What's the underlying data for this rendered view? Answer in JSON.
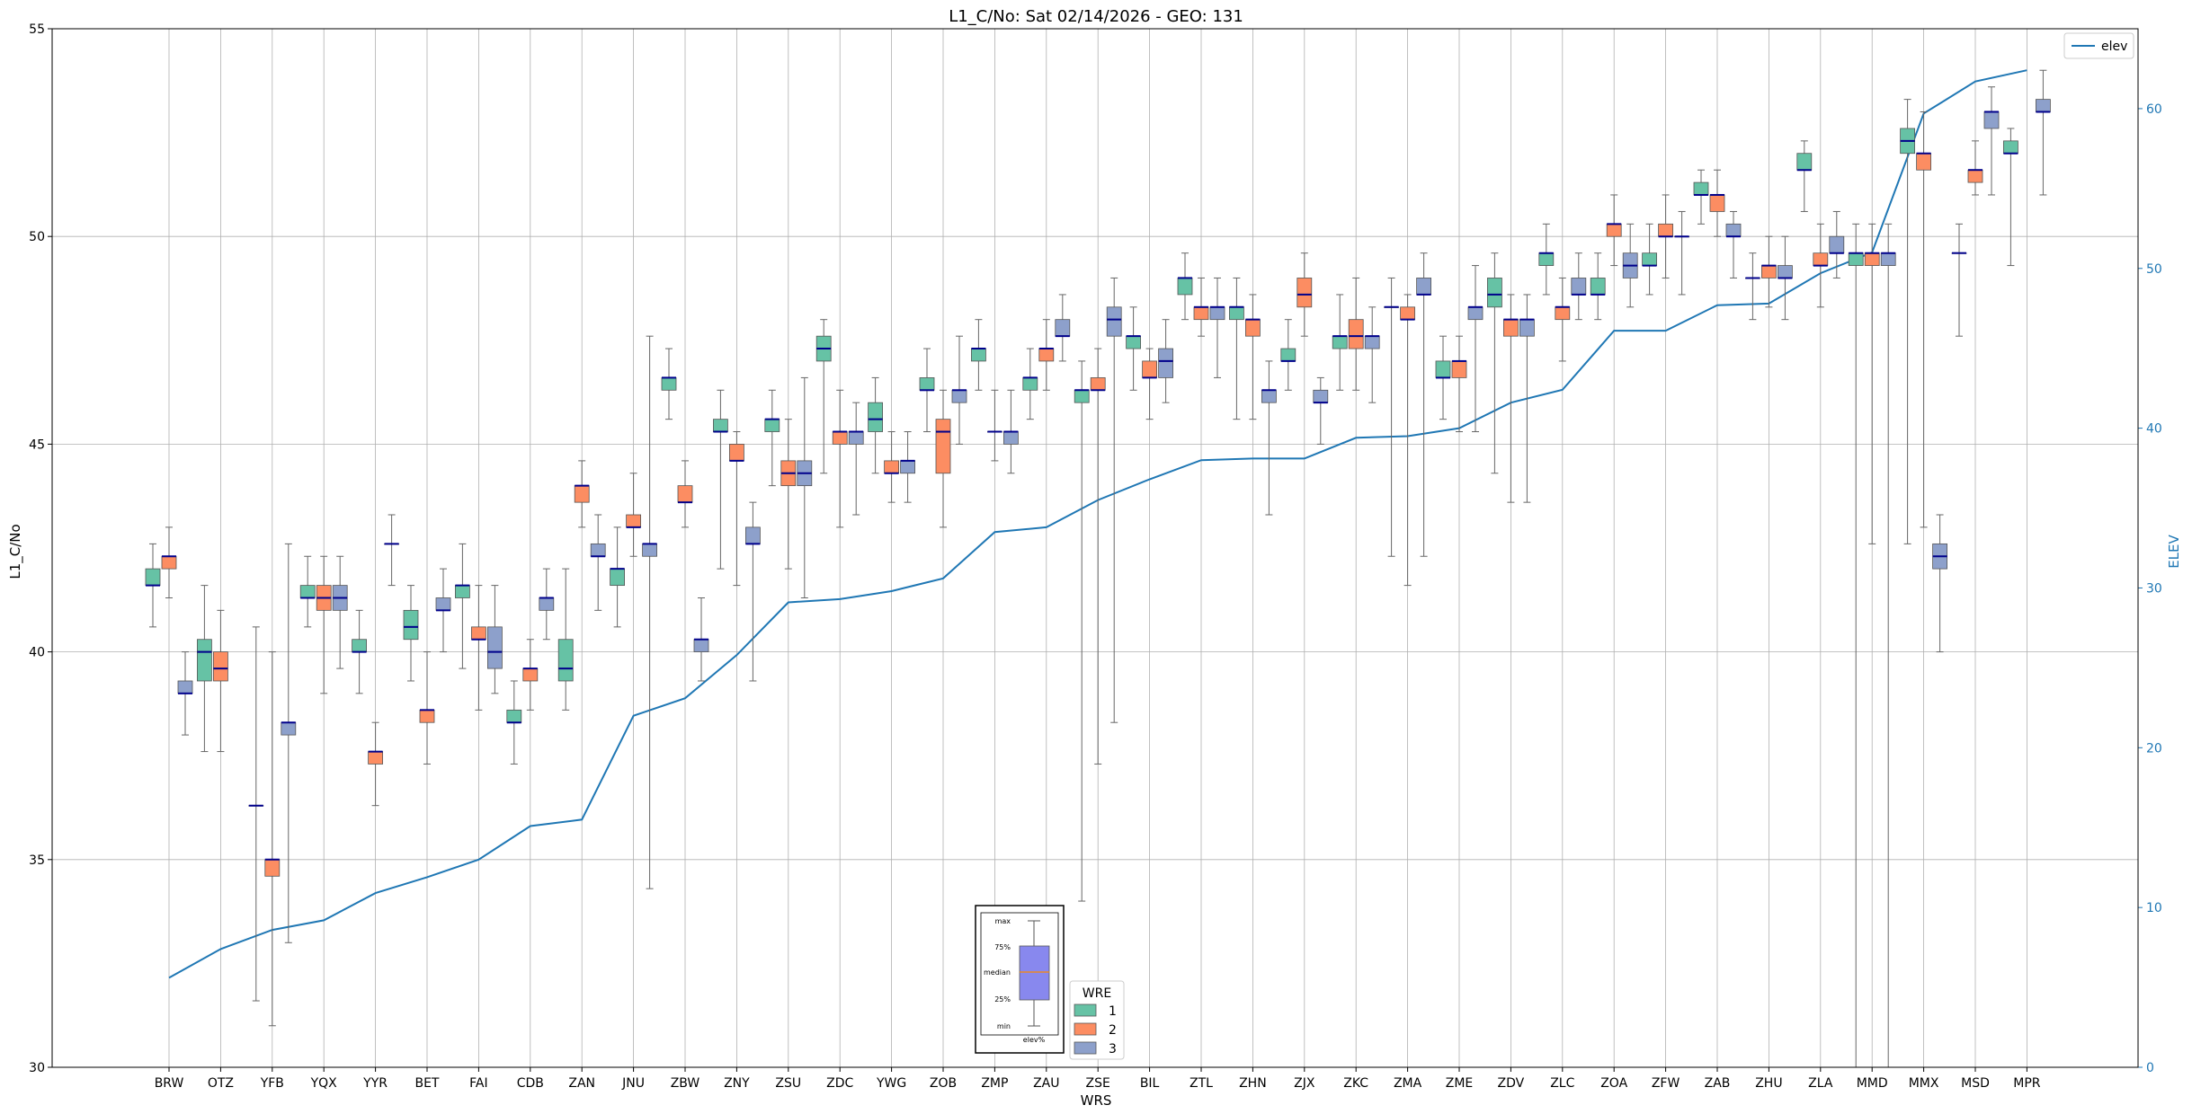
{
  "chart_data": {
    "type": "box",
    "title": "L1_C/No: Sat 02/14/2026 - GEO: 131",
    "xlabel": "WRS",
    "ylabel": "L1_C/No",
    "y2label": "ELEV",
    "ylim": [
      30,
      55
    ],
    "y2lim": [
      0,
      65
    ],
    "yticks": [
      "30",
      "35",
      "40",
      "45",
      "50",
      "55"
    ],
    "y2ticks": [
      "0",
      "10",
      "20",
      "30",
      "40",
      "50",
      "60"
    ],
    "grid": true,
    "categories": [
      "BRW",
      "OTZ",
      "YFB",
      "YQX",
      "YYR",
      "BET",
      "FAI",
      "CDB",
      "ZAN",
      "JNU",
      "ZBW",
      "ZNY",
      "ZSU",
      "ZDC",
      "YWG",
      "ZOB",
      "ZMP",
      "ZAU",
      "ZSE",
      "BIL",
      "ZTL",
      "ZHN",
      "ZJX",
      "ZKC",
      "ZMA",
      "ZME",
      "ZDV",
      "ZLC",
      "ZOA",
      "ZFW",
      "ZAB",
      "ZHU",
      "ZLA",
      "MMD",
      "MMX",
      "MSD",
      "MPR"
    ],
    "wre_legend": {
      "title": "WRE",
      "entries": [
        "1",
        "2",
        "3"
      ]
    },
    "colors": {
      "1": "#66c2a5",
      "2": "#fc8d62",
      "3": "#8da0cb",
      "median": "#00008b",
      "elev": "#1f77b4"
    },
    "boxes": [
      {
        "site": "BRW",
        "wre": 1,
        "min": 40.6,
        "q1": 41.6,
        "median": 41.6,
        "q3": 42.0,
        "max": 42.6
      },
      {
        "site": "BRW",
        "wre": 2,
        "min": 41.3,
        "q1": 42.0,
        "median": 42.3,
        "q3": 42.3,
        "max": 43.0
      },
      {
        "site": "BRW",
        "wre": 3,
        "min": 38.0,
        "q1": 39.0,
        "median": 39.0,
        "q3": 39.3,
        "max": 40.0
      },
      {
        "site": "OTZ",
        "wre": 1,
        "min": 37.6,
        "q1": 39.3,
        "median": 40.0,
        "q3": 40.3,
        "max": 41.6
      },
      {
        "site": "OTZ",
        "wre": 2,
        "min": 37.6,
        "q1": 39.3,
        "median": 39.6,
        "q3": 40.0,
        "max": 41.0
      },
      {
        "site": "YFB",
        "wre": 1,
        "min": 31.6,
        "q1": 36.3,
        "median": 36.3,
        "q3": 36.3,
        "max": 40.6
      },
      {
        "site": "YFB",
        "wre": 2,
        "min": 31.0,
        "q1": 34.6,
        "median": 35.0,
        "q3": 35.0,
        "max": 40.0
      },
      {
        "site": "YFB",
        "wre": 3,
        "min": 33.0,
        "q1": 38.0,
        "median": 38.3,
        "q3": 38.3,
        "max": 42.6
      },
      {
        "site": "YQX",
        "wre": 1,
        "min": 40.6,
        "q1": 41.3,
        "median": 41.3,
        "q3": 41.6,
        "max": 42.3
      },
      {
        "site": "YQX",
        "wre": 2,
        "min": 39.0,
        "q1": 41.0,
        "median": 41.3,
        "q3": 41.6,
        "max": 42.3
      },
      {
        "site": "YQX",
        "wre": 3,
        "min": 39.6,
        "q1": 41.0,
        "median": 41.3,
        "q3": 41.6,
        "max": 42.3
      },
      {
        "site": "YYR",
        "wre": 1,
        "min": 39.0,
        "q1": 40.0,
        "median": 40.0,
        "q3": 40.3,
        "max": 41.0
      },
      {
        "site": "YYR",
        "wre": 2,
        "min": 36.3,
        "q1": 37.3,
        "median": 37.6,
        "q3": 37.6,
        "max": 38.3
      },
      {
        "site": "YYR",
        "wre": 3,
        "min": 41.6,
        "q1": 42.6,
        "median": 42.6,
        "q3": 42.6,
        "max": 43.3
      },
      {
        "site": "BET",
        "wre": 1,
        "min": 39.3,
        "q1": 40.3,
        "median": 40.6,
        "q3": 41.0,
        "max": 41.6
      },
      {
        "site": "BET",
        "wre": 2,
        "min": 37.3,
        "q1": 38.3,
        "median": 38.6,
        "q3": 38.6,
        "max": 40.0
      },
      {
        "site": "BET",
        "wre": 3,
        "min": 40.0,
        "q1": 41.0,
        "median": 41.0,
        "q3": 41.3,
        "max": 42.0
      },
      {
        "site": "FAI",
        "wre": 1,
        "min": 39.6,
        "q1": 41.3,
        "median": 41.6,
        "q3": 41.6,
        "max": 42.6
      },
      {
        "site": "FAI",
        "wre": 2,
        "min": 38.6,
        "q1": 40.3,
        "median": 40.3,
        "q3": 40.6,
        "max": 41.6
      },
      {
        "site": "FAI",
        "wre": 3,
        "min": 39.0,
        "q1": 39.6,
        "median": 40.0,
        "q3": 40.6,
        "max": 41.6
      },
      {
        "site": "CDB",
        "wre": 1,
        "min": 37.3,
        "q1": 38.3,
        "median": 38.3,
        "q3": 38.6,
        "max": 39.3
      },
      {
        "site": "CDB",
        "wre": 2,
        "min": 38.6,
        "q1": 39.3,
        "median": 39.6,
        "q3": 39.6,
        "max": 40.3
      },
      {
        "site": "CDB",
        "wre": 3,
        "min": 40.3,
        "q1": 41.0,
        "median": 41.3,
        "q3": 41.3,
        "max": 42.0
      },
      {
        "site": "ZAN",
        "wre": 1,
        "min": 38.6,
        "q1": 39.3,
        "median": 39.6,
        "q3": 40.3,
        "max": 42.0
      },
      {
        "site": "ZAN",
        "wre": 2,
        "min": 43.0,
        "q1": 43.6,
        "median": 44.0,
        "q3": 44.0,
        "max": 44.6
      },
      {
        "site": "ZAN",
        "wre": 3,
        "min": 41.0,
        "q1": 42.3,
        "median": 42.3,
        "q3": 42.6,
        "max": 43.3
      },
      {
        "site": "JNU",
        "wre": 1,
        "min": 40.6,
        "q1": 41.6,
        "median": 42.0,
        "q3": 42.0,
        "max": 43.0
      },
      {
        "site": "JNU",
        "wre": 2,
        "min": 42.3,
        "q1": 43.0,
        "median": 43.0,
        "q3": 43.3,
        "max": 44.3
      },
      {
        "site": "JNU",
        "wre": 3,
        "min": 34.3,
        "q1": 42.3,
        "median": 42.6,
        "q3": 42.6,
        "max": 47.6
      },
      {
        "site": "ZBW",
        "wre": 1,
        "min": 45.6,
        "q1": 46.3,
        "median": 46.6,
        "q3": 46.6,
        "max": 47.3
      },
      {
        "site": "ZBW",
        "wre": 2,
        "min": 43.0,
        "q1": 43.6,
        "median": 43.6,
        "q3": 44.0,
        "max": 44.6
      },
      {
        "site": "ZBW",
        "wre": 3,
        "min": 39.3,
        "q1": 40.0,
        "median": 40.3,
        "q3": 40.3,
        "max": 41.3
      },
      {
        "site": "ZNY",
        "wre": 1,
        "min": 42.0,
        "q1": 45.3,
        "median": 45.3,
        "q3": 45.6,
        "max": 46.3
      },
      {
        "site": "ZNY",
        "wre": 2,
        "min": 41.6,
        "q1": 44.6,
        "median": 44.6,
        "q3": 45.0,
        "max": 45.3
      },
      {
        "site": "ZNY",
        "wre": 3,
        "min": 39.3,
        "q1": 42.6,
        "median": 42.6,
        "q3": 43.0,
        "max": 43.6
      },
      {
        "site": "ZSU",
        "wre": 1,
        "min": 44.0,
        "q1": 45.3,
        "median": 45.6,
        "q3": 45.6,
        "max": 46.3
      },
      {
        "site": "ZSU",
        "wre": 2,
        "min": 42.0,
        "q1": 44.0,
        "median": 44.3,
        "q3": 44.6,
        "max": 45.6
      },
      {
        "site": "ZSU",
        "wre": 3,
        "min": 41.3,
        "q1": 44.0,
        "median": 44.3,
        "q3": 44.6,
        "max": 46.6
      },
      {
        "site": "ZDC",
        "wre": 1,
        "min": 44.3,
        "q1": 47.0,
        "median": 47.3,
        "q3": 47.6,
        "max": 48.0
      },
      {
        "site": "ZDC",
        "wre": 2,
        "min": 43.0,
        "q1": 45.0,
        "median": 45.3,
        "q3": 45.3,
        "max": 46.3
      },
      {
        "site": "ZDC",
        "wre": 3,
        "min": 43.3,
        "q1": 45.0,
        "median": 45.3,
        "q3": 45.3,
        "max": 46.0
      },
      {
        "site": "YWG",
        "wre": 1,
        "min": 44.3,
        "q1": 45.3,
        "median": 45.6,
        "q3": 46.0,
        "max": 46.6
      },
      {
        "site": "YWG",
        "wre": 2,
        "min": 43.6,
        "q1": 44.3,
        "median": 44.3,
        "q3": 44.6,
        "max": 45.3
      },
      {
        "site": "YWG",
        "wre": 3,
        "min": 43.6,
        "q1": 44.3,
        "median": 44.6,
        "q3": 44.6,
        "max": 45.3
      },
      {
        "site": "ZOB",
        "wre": 1,
        "min": 45.3,
        "q1": 46.3,
        "median": 46.3,
        "q3": 46.6,
        "max": 47.3
      },
      {
        "site": "ZOB",
        "wre": 2,
        "min": 43.0,
        "q1": 44.3,
        "median": 45.3,
        "q3": 45.6,
        "max": 46.3
      },
      {
        "site": "ZOB",
        "wre": 3,
        "min": 45.0,
        "q1": 46.0,
        "median": 46.3,
        "q3": 46.3,
        "max": 47.6
      },
      {
        "site": "ZMP",
        "wre": 1,
        "min": 46.3,
        "q1": 47.0,
        "median": 47.3,
        "q3": 47.3,
        "max": 48.0
      },
      {
        "site": "ZMP",
        "wre": 2,
        "min": 44.6,
        "q1": 45.3,
        "median": 45.3,
        "q3": 45.3,
        "max": 46.3
      },
      {
        "site": "ZMP",
        "wre": 3,
        "min": 44.3,
        "q1": 45.0,
        "median": 45.3,
        "q3": 45.3,
        "max": 46.3
      },
      {
        "site": "ZAU",
        "wre": 1,
        "min": 45.6,
        "q1": 46.3,
        "median": 46.6,
        "q3": 46.6,
        "max": 47.3
      },
      {
        "site": "ZAU",
        "wre": 2,
        "min": 46.3,
        "q1": 47.0,
        "median": 47.3,
        "q3": 47.3,
        "max": 48.0
      },
      {
        "site": "ZAU",
        "wre": 3,
        "min": 47.0,
        "q1": 47.6,
        "median": 47.6,
        "q3": 48.0,
        "max": 48.6
      },
      {
        "site": "ZSE",
        "wre": 1,
        "min": 34.0,
        "q1": 46.0,
        "median": 46.3,
        "q3": 46.3,
        "max": 47.0
      },
      {
        "site": "ZSE",
        "wre": 2,
        "min": 37.3,
        "q1": 46.3,
        "median": 46.3,
        "q3": 46.6,
        "max": 47.3
      },
      {
        "site": "ZSE",
        "wre": 3,
        "min": 38.3,
        "q1": 47.6,
        "median": 48.0,
        "q3": 48.3,
        "max": 49.0
      },
      {
        "site": "BIL",
        "wre": 1,
        "min": 46.3,
        "q1": 47.3,
        "median": 47.6,
        "q3": 47.6,
        "max": 48.3
      },
      {
        "site": "BIL",
        "wre": 2,
        "min": 45.6,
        "q1": 46.6,
        "median": 46.6,
        "q3": 47.0,
        "max": 47.3
      },
      {
        "site": "BIL",
        "wre": 3,
        "min": 46.0,
        "q1": 46.6,
        "median": 47.0,
        "q3": 47.3,
        "max": 48.0
      },
      {
        "site": "ZTL",
        "wre": 1,
        "min": 48.0,
        "q1": 48.6,
        "median": 49.0,
        "q3": 49.0,
        "max": 49.6
      },
      {
        "site": "ZTL",
        "wre": 2,
        "min": 47.6,
        "q1": 48.0,
        "median": 48.3,
        "q3": 48.3,
        "max": 49.0
      },
      {
        "site": "ZTL",
        "wre": 3,
        "min": 46.6,
        "q1": 48.0,
        "median": 48.3,
        "q3": 48.3,
        "max": 49.0
      },
      {
        "site": "ZHN",
        "wre": 1,
        "min": 45.6,
        "q1": 48.0,
        "median": 48.3,
        "q3": 48.3,
        "max": 49.0
      },
      {
        "site": "ZHN",
        "wre": 2,
        "min": 45.6,
        "q1": 47.6,
        "median": 48.0,
        "q3": 48.0,
        "max": 48.6
      },
      {
        "site": "ZHN",
        "wre": 3,
        "min": 43.3,
        "q1": 46.0,
        "median": 46.3,
        "q3": 46.3,
        "max": 47.0
      },
      {
        "site": "ZJX",
        "wre": 1,
        "min": 46.3,
        "q1": 47.0,
        "median": 47.0,
        "q3": 47.3,
        "max": 48.0
      },
      {
        "site": "ZJX",
        "wre": 2,
        "min": 47.6,
        "q1": 48.3,
        "median": 48.6,
        "q3": 49.0,
        "max": 49.6
      },
      {
        "site": "ZJX",
        "wre": 3,
        "min": 45.0,
        "q1": 46.0,
        "median": 46.0,
        "q3": 46.3,
        "max": 46.6
      },
      {
        "site": "ZKC",
        "wre": 1,
        "min": 46.3,
        "q1": 47.3,
        "median": 47.6,
        "q3": 47.6,
        "max": 48.6
      },
      {
        "site": "ZKC",
        "wre": 2,
        "min": 46.3,
        "q1": 47.3,
        "median": 47.6,
        "q3": 48.0,
        "max": 49.0
      },
      {
        "site": "ZKC",
        "wre": 3,
        "min": 46.0,
        "q1": 47.3,
        "median": 47.6,
        "q3": 47.6,
        "max": 48.3
      },
      {
        "site": "ZMA",
        "wre": 1,
        "min": 42.3,
        "q1": 48.3,
        "median": 48.3,
        "q3": 48.3,
        "max": 49.0
      },
      {
        "site": "ZMA",
        "wre": 2,
        "min": 41.6,
        "q1": 48.0,
        "median": 48.0,
        "q3": 48.3,
        "max": 48.6
      },
      {
        "site": "ZMA",
        "wre": 3,
        "min": 42.3,
        "q1": 48.6,
        "median": 48.6,
        "q3": 49.0,
        "max": 49.6
      },
      {
        "site": "ZME",
        "wre": 1,
        "min": 45.6,
        "q1": 46.6,
        "median": 46.6,
        "q3": 47.0,
        "max": 47.6
      },
      {
        "site": "ZME",
        "wre": 2,
        "min": 45.3,
        "q1": 46.6,
        "median": 47.0,
        "q3": 47.0,
        "max": 47.6
      },
      {
        "site": "ZME",
        "wre": 3,
        "min": 45.3,
        "q1": 48.0,
        "median": 48.3,
        "q3": 48.3,
        "max": 49.3
      },
      {
        "site": "ZDV",
        "wre": 1,
        "min": 44.3,
        "q1": 48.3,
        "median": 48.6,
        "q3": 49.0,
        "max": 49.6
      },
      {
        "site": "ZDV",
        "wre": 2,
        "min": 43.6,
        "q1": 47.6,
        "median": 48.0,
        "q3": 48.0,
        "max": 48.6
      },
      {
        "site": "ZDV",
        "wre": 3,
        "min": 43.6,
        "q1": 47.6,
        "median": 48.0,
        "q3": 48.0,
        "max": 48.6
      },
      {
        "site": "ZLC",
        "wre": 1,
        "min": 48.6,
        "q1": 49.3,
        "median": 49.6,
        "q3": 49.6,
        "max": 50.3
      },
      {
        "site": "ZLC",
        "wre": 2,
        "min": 47.0,
        "q1": 48.0,
        "median": 48.3,
        "q3": 48.3,
        "max": 49.0
      },
      {
        "site": "ZLC",
        "wre": 3,
        "min": 48.0,
        "q1": 48.6,
        "median": 48.6,
        "q3": 49.0,
        "max": 49.6
      },
      {
        "site": "ZOA",
        "wre": 1,
        "min": 48.0,
        "q1": 48.6,
        "median": 48.6,
        "q3": 49.0,
        "max": 49.6
      },
      {
        "site": "ZOA",
        "wre": 2,
        "min": 49.3,
        "q1": 50.0,
        "median": 50.3,
        "q3": 50.3,
        "max": 51.0
      },
      {
        "site": "ZOA",
        "wre": 3,
        "min": 48.3,
        "q1": 49.0,
        "median": 49.3,
        "q3": 49.6,
        "max": 50.3
      },
      {
        "site": "ZFW",
        "wre": 1,
        "min": 48.6,
        "q1": 49.3,
        "median": 49.3,
        "q3": 49.6,
        "max": 50.3
      },
      {
        "site": "ZFW",
        "wre": 2,
        "min": 49.0,
        "q1": 50.0,
        "median": 50.0,
        "q3": 50.3,
        "max": 51.0
      },
      {
        "site": "ZFW",
        "wre": 3,
        "min": 48.6,
        "q1": 50.0,
        "median": 50.0,
        "q3": 50.0,
        "max": 50.6
      },
      {
        "site": "ZAB",
        "wre": 1,
        "min": 50.3,
        "q1": 51.0,
        "median": 51.0,
        "q3": 51.3,
        "max": 51.6
      },
      {
        "site": "ZAB",
        "wre": 2,
        "min": 50.0,
        "q1": 50.6,
        "median": 51.0,
        "q3": 51.0,
        "max": 51.6
      },
      {
        "site": "ZAB",
        "wre": 3,
        "min": 49.0,
        "q1": 50.0,
        "median": 50.0,
        "q3": 50.3,
        "max": 50.6
      },
      {
        "site": "ZHU",
        "wre": 1,
        "min": 48.0,
        "q1": 49.0,
        "median": 49.0,
        "q3": 49.0,
        "max": 49.6
      },
      {
        "site": "ZHU",
        "wre": 2,
        "min": 48.3,
        "q1": 49.0,
        "median": 49.3,
        "q3": 49.3,
        "max": 50.0
      },
      {
        "site": "ZHU",
        "wre": 3,
        "min": 48.0,
        "q1": 49.0,
        "median": 49.0,
        "q3": 49.3,
        "max": 50.0
      },
      {
        "site": "ZLA",
        "wre": 1,
        "min": 50.6,
        "q1": 51.6,
        "median": 51.6,
        "q3": 52.0,
        "max": 52.3
      },
      {
        "site": "ZLA",
        "wre": 2,
        "min": 48.3,
        "q1": 49.3,
        "median": 49.3,
        "q3": 49.6,
        "max": 50.3
      },
      {
        "site": "ZLA",
        "wre": 3,
        "min": 49.0,
        "q1": 49.6,
        "median": 49.6,
        "q3": 50.0,
        "max": 50.6
      },
      {
        "site": "MMD",
        "wre": 1,
        "min": 30.0,
        "q1": 49.3,
        "median": 49.6,
        "q3": 49.6,
        "max": 50.3
      },
      {
        "site": "MMD",
        "wre": 2,
        "min": 42.6,
        "q1": 49.3,
        "median": 49.6,
        "q3": 49.6,
        "max": 50.3
      },
      {
        "site": "MMD",
        "wre": 3,
        "min": 30.0,
        "q1": 49.3,
        "median": 49.6,
        "q3": 49.6,
        "max": 50.3
      },
      {
        "site": "MMX",
        "wre": 1,
        "min": 42.6,
        "q1": 52.0,
        "median": 52.3,
        "q3": 52.6,
        "max": 53.3
      },
      {
        "site": "MMX",
        "wre": 2,
        "min": 43.0,
        "q1": 51.6,
        "median": 52.0,
        "q3": 52.0,
        "max": 53.0
      },
      {
        "site": "MMX",
        "wre": 3,
        "min": 40.0,
        "q1": 42.0,
        "median": 42.3,
        "q3": 42.6,
        "max": 43.3
      },
      {
        "site": "MSD",
        "wre": 1,
        "min": 47.6,
        "q1": 49.6,
        "median": 49.6,
        "q3": 49.6,
        "max": 50.3
      },
      {
        "site": "MSD",
        "wre": 2,
        "min": 51.0,
        "q1": 51.3,
        "median": 51.6,
        "q3": 51.6,
        "max": 52.3
      },
      {
        "site": "MSD",
        "wre": 3,
        "min": 51.0,
        "q1": 52.6,
        "median": 53.0,
        "q3": 53.0,
        "max": 53.6
      },
      {
        "site": "MPR",
        "wre": 1,
        "min": 49.3,
        "q1": 52.0,
        "median": 52.0,
        "q3": 52.3,
        "max": 52.6
      },
      {
        "site": "MPR",
        "wre": 3,
        "min": 51.0,
        "q1": 53.0,
        "median": 53.0,
        "q3": 53.3,
        "max": 54.0
      }
    ],
    "series": [
      {
        "name": "elev",
        "axis": "right",
        "values": [
          5.6,
          7.4,
          8.6,
          9.2,
          10.9,
          11.9,
          13.0,
          15.1,
          15.5,
          22.0,
          23.1,
          25.8,
          29.1,
          29.3,
          29.8,
          30.6,
          33.5,
          33.8,
          35.5,
          36.8,
          38.0,
          38.1,
          38.1,
          39.4,
          39.5,
          40.0,
          41.6,
          42.4,
          46.1,
          46.1,
          47.7,
          47.8,
          49.7,
          51.0,
          59.7,
          61.7,
          62.4
        ]
      }
    ]
  },
  "key_box": {
    "labels": [
      "max",
      "75%",
      "median",
      "25%",
      "min"
    ],
    "caption": "elev%",
    "box_color": "#8888ee",
    "median_color": "#ff8800"
  }
}
